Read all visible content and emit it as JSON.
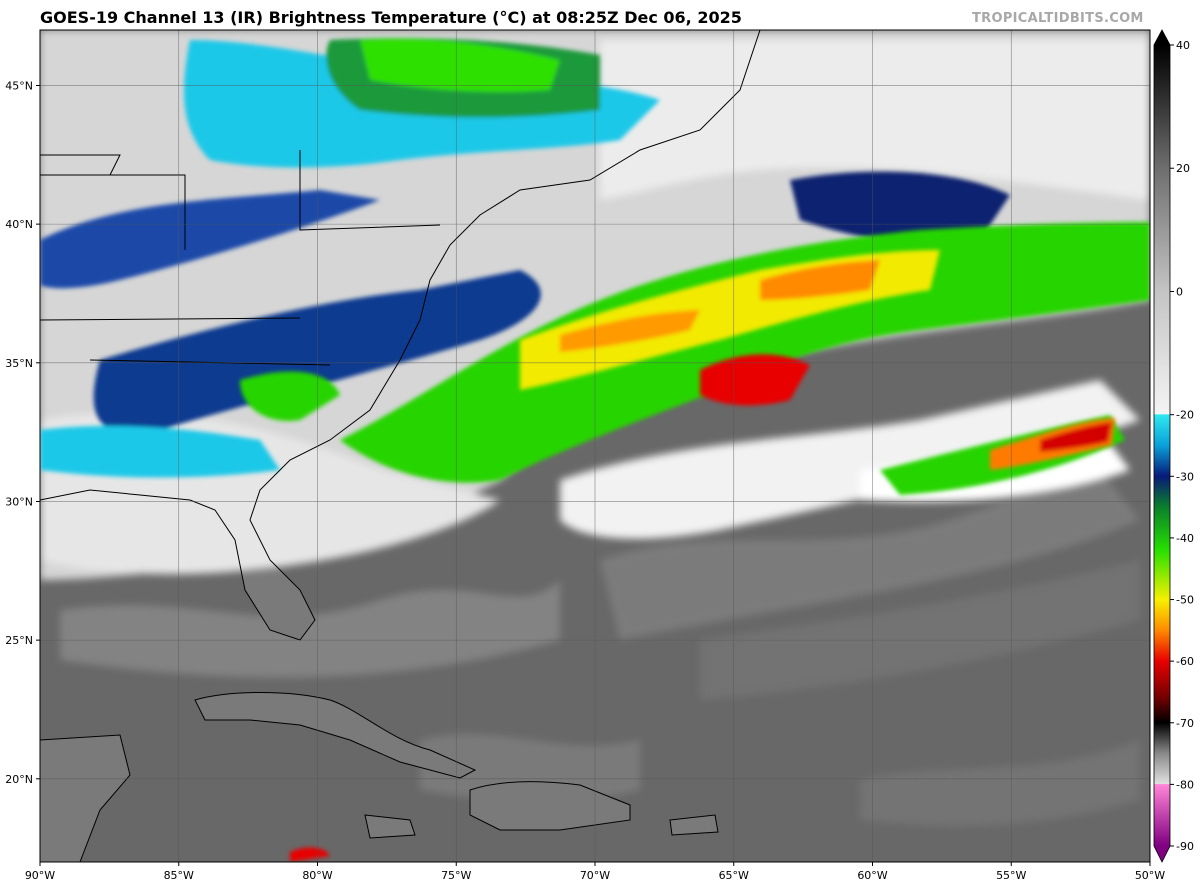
{
  "header": {
    "title": "GOES-19 Channel 13 (IR) Brightness Temperature (°C) at 08:25Z Dec 06, 2025",
    "credit": "TROPICALTIDBITS.COM"
  },
  "map": {
    "projection": "plate-carree",
    "lon_range": [
      -90,
      -50
    ],
    "lat_range": [
      17,
      47
    ],
    "lon_ticks": [
      "90°W",
      "85°W",
      "80°W",
      "75°W",
      "70°W",
      "65°W",
      "60°W",
      "55°W",
      "50°W"
    ],
    "lat_ticks": [
      "45°N",
      "40°N",
      "35°N",
      "30°N",
      "25°N",
      "20°N"
    ],
    "gridlines": true
  },
  "colorbar": {
    "range": [
      -90,
      40
    ],
    "tick_labels": [
      "40",
      "20",
      "0",
      "-20",
      "-30",
      "-40",
      "-50",
      "-60",
      "-70",
      "-80",
      "-90"
    ],
    "stops": [
      {
        "v": 40,
        "color": "#000000"
      },
      {
        "v": 20,
        "color": "#6e6e6e"
      },
      {
        "v": 0,
        "color": "#c4c4c4"
      },
      {
        "v": -19.9,
        "color": "#f4f4f4"
      },
      {
        "v": -20,
        "color": "#2fe8f0"
      },
      {
        "v": -25,
        "color": "#0aa0d8"
      },
      {
        "v": -30,
        "color": "#081a78"
      },
      {
        "v": -35,
        "color": "#0b7f2c"
      },
      {
        "v": -42,
        "color": "#26e000"
      },
      {
        "v": -50,
        "color": "#f6f000"
      },
      {
        "v": -55,
        "color": "#ff8a00"
      },
      {
        "v": -60,
        "color": "#e80000"
      },
      {
        "v": -66,
        "color": "#700000"
      },
      {
        "v": -70,
        "color": "#000000"
      },
      {
        "v": -75,
        "color": "#8a8a8a"
      },
      {
        "v": -79.9,
        "color": "#e0e0e0"
      },
      {
        "v": -80,
        "color": "#ff86d8"
      },
      {
        "v": -90,
        "color": "#800080"
      }
    ]
  },
  "colors": {
    "ocean_warm": "#6a6a6a",
    "cloud_low": "#d8d8d8",
    "coastline": "#000000",
    "gridline": "#555555"
  }
}
